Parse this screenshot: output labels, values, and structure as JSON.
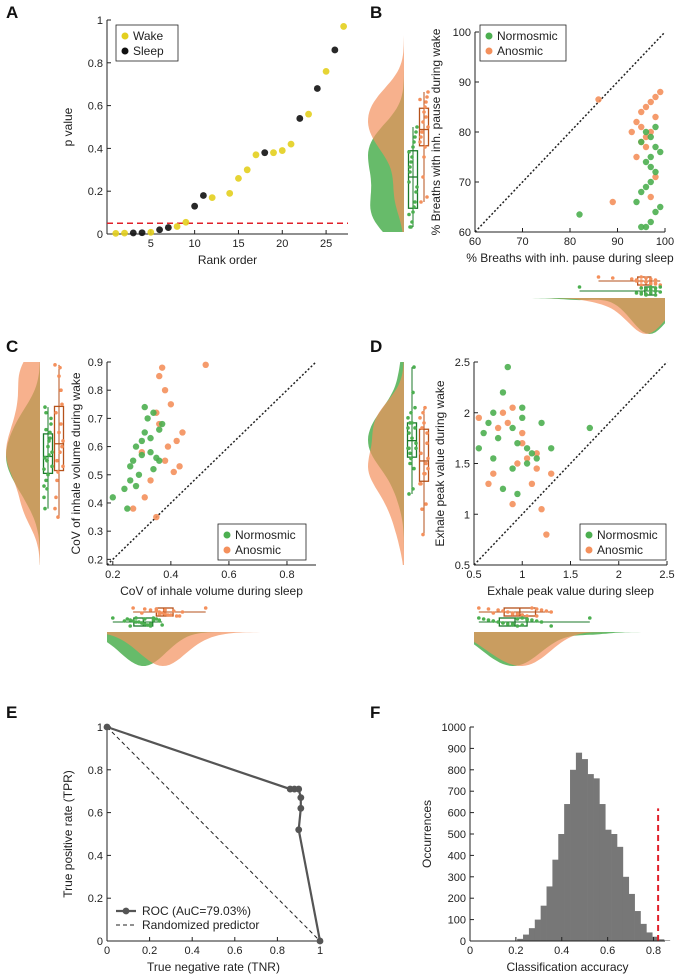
{
  "colors": {
    "wake": "#e3cf1e",
    "sleep": "#111111",
    "normosmic": "#4caf50",
    "anosmic": "#f4905c",
    "normosmic_box": "#1b7a2a",
    "anosmic_box": "#b5521b",
    "overlap": "#c39a55",
    "threshold": "#e0202a",
    "roc": "#555555",
    "hist": "#777777"
  },
  "chart_data": [
    {
      "panel": "A",
      "type": "scatter",
      "xlabel": "Rank order",
      "ylabel": "p value",
      "xlim": [
        0,
        27.5
      ],
      "ylim": [
        0,
        1
      ],
      "xticks": [
        "5",
        "10",
        "15",
        "20",
        "25"
      ],
      "yticks": [
        "0",
        "0.2",
        "0.4",
        "0.6",
        "0.8",
        "1"
      ],
      "threshold": 0.05,
      "legend": [
        "Wake",
        "Sleep"
      ],
      "wake": {
        "x": [
          1,
          2,
          5,
          8,
          9,
          12,
          14,
          15,
          16,
          17,
          19,
          20,
          21,
          23,
          25,
          27
        ],
        "y": [
          0.003,
          0.004,
          0.008,
          0.035,
          0.055,
          0.17,
          0.19,
          0.26,
          0.3,
          0.37,
          0.38,
          0.39,
          0.42,
          0.56,
          0.76,
          0.97
        ]
      },
      "sleep": {
        "x": [
          3,
          4,
          6,
          7,
          10,
          11,
          18,
          22,
          24,
          26
        ],
        "y": [
          0.005,
          0.006,
          0.02,
          0.03,
          0.13,
          0.18,
          0.38,
          0.54,
          0.68,
          0.86
        ]
      }
    },
    {
      "panel": "B",
      "type": "scatter",
      "xlabel": "% Breaths with inh. pause during sleep",
      "ylabel": "% Breaths with inh. pause during wake",
      "xlim": [
        60,
        100
      ],
      "ylim": [
        60,
        100
      ],
      "xticks": [
        "60",
        "70",
        "80",
        "90",
        "100"
      ],
      "yticks": [
        "60",
        "70",
        "80",
        "90",
        "100"
      ],
      "legend": [
        "Normosmic",
        "Anosmic"
      ],
      "normosmic": {
        "x": [
          82,
          95,
          96,
          97,
          98,
          99,
          94,
          95,
          96,
          97,
          98,
          96,
          97,
          98,
          95,
          97,
          96,
          98,
          99,
          97
        ],
        "y": [
          63.5,
          61,
          61,
          62,
          64,
          65,
          66,
          68,
          69,
          70,
          72,
          74,
          75,
          77,
          78,
          79,
          80,
          81,
          76,
          73
        ]
      },
      "anosmic": {
        "x": [
          86,
          89,
          93,
          94,
          95,
          96,
          97,
          98,
          99,
          95,
          96,
          97,
          98,
          94,
          96,
          98,
          97,
          95
        ],
        "y": [
          86.5,
          66,
          80,
          82,
          84,
          85,
          86,
          87,
          88,
          78,
          79,
          80,
          71,
          75,
          77,
          83,
          67,
          81
        ]
      }
    },
    {
      "panel": "C",
      "type": "scatter",
      "xlabel": "CoV of inhale volume during sleep",
      "ylabel": "CoV of inhale volume during wake",
      "xlim": [
        0.18,
        0.9
      ],
      "ylim": [
        0.18,
        0.9
      ],
      "xticks": [
        "0.2",
        "0.4",
        "0.6",
        "0.8"
      ],
      "yticks": [
        "0.2",
        "0.3",
        "0.4",
        "0.5",
        "0.6",
        "0.7",
        "0.8",
        "0.9"
      ],
      "legend": [
        "Normosmic",
        "Anosmic"
      ],
      "normosmic": {
        "x": [
          0.2,
          0.25,
          0.26,
          0.27,
          0.28,
          0.3,
          0.31,
          0.32,
          0.33,
          0.34,
          0.35,
          0.36,
          0.24,
          0.29,
          0.3,
          0.33,
          0.37,
          0.26,
          0.28,
          0.31,
          0.34,
          0.36
        ],
        "y": [
          0.42,
          0.38,
          0.48,
          0.55,
          0.6,
          0.62,
          0.65,
          0.7,
          0.58,
          0.52,
          0.56,
          0.66,
          0.45,
          0.5,
          0.57,
          0.63,
          0.68,
          0.53,
          0.46,
          0.74,
          0.72,
          0.55
        ]
      },
      "anosmic": {
        "x": [
          0.27,
          0.31,
          0.33,
          0.35,
          0.36,
          0.37,
          0.38,
          0.4,
          0.42,
          0.52,
          0.35,
          0.38,
          0.41,
          0.44,
          0.3,
          0.36,
          0.39,
          0.43
        ],
        "y": [
          0.38,
          0.42,
          0.48,
          0.35,
          0.85,
          0.88,
          0.8,
          0.75,
          0.62,
          0.89,
          0.72,
          0.55,
          0.51,
          0.65,
          0.58,
          0.68,
          0.6,
          0.53
        ]
      }
    },
    {
      "panel": "D",
      "type": "scatter",
      "xlabel": "Exhale peak value during sleep",
      "ylabel": "Exhale peak value during wake",
      "xlim": [
        0.5,
        2.5
      ],
      "ylim": [
        0.5,
        2.5
      ],
      "xticks": [
        "0.5",
        "1",
        "1.5",
        "2",
        "2.5"
      ],
      "yticks": [
        "0.5",
        "1",
        "1.5",
        "2",
        "2.5"
      ],
      "legend": [
        "Normosmic",
        "Anosmic"
      ],
      "normosmic": {
        "x": [
          0.55,
          0.6,
          0.65,
          0.7,
          0.75,
          0.8,
          0.85,
          0.9,
          0.95,
          1.0,
          1.05,
          1.1,
          1.15,
          1.2,
          0.8,
          0.9,
          1.0,
          1.3,
          1.7,
          0.95,
          1.05,
          0.7
        ],
        "y": [
          1.65,
          1.8,
          1.9,
          2.0,
          1.75,
          2.2,
          2.45,
          1.85,
          1.7,
          1.95,
          1.65,
          1.6,
          1.55,
          1.9,
          1.25,
          1.45,
          2.05,
          1.65,
          1.85,
          1.2,
          1.5,
          1.55
        ]
      },
      "anosmic": {
        "x": [
          0.55,
          0.65,
          0.75,
          0.8,
          0.85,
          0.9,
          0.95,
          1.0,
          1.05,
          1.1,
          1.15,
          1.2,
          1.25,
          1.3,
          0.7,
          0.9,
          1.0,
          1.15
        ],
        "y": [
          1.95,
          1.3,
          1.85,
          2.0,
          1.9,
          2.05,
          1.5,
          1.7,
          1.55,
          1.3,
          1.6,
          1.05,
          0.8,
          1.4,
          1.4,
          1.1,
          1.8,
          1.45
        ]
      }
    },
    {
      "panel": "E",
      "type": "line",
      "xlabel": "True negative rate (TNR)",
      "ylabel": "True positive rate (TPR)",
      "xlim": [
        0,
        1
      ],
      "ylim": [
        0,
        1
      ],
      "xticks": [
        "0",
        "0.2",
        "0.4",
        "0.6",
        "0.8",
        "1"
      ],
      "yticks": [
        "0",
        "0.2",
        "0.4",
        "0.6",
        "0.8",
        "1"
      ],
      "series": [
        {
          "name": "ROC (AuC=79.03%)",
          "x": [
            0,
            0.86,
            0.88,
            0.9,
            0.91,
            0.91,
            0.9,
            1
          ],
          "y": [
            1,
            0.71,
            0.71,
            0.71,
            0.67,
            0.62,
            0.52,
            0
          ]
        },
        {
          "name": "Randomized predictor",
          "x": [
            0,
            1
          ],
          "y": [
            1,
            0
          ]
        }
      ]
    },
    {
      "panel": "F",
      "type": "bar",
      "xlabel": "Classification accuracy",
      "ylabel": "Occurrences",
      "xlim": [
        0,
        0.85
      ],
      "ylim": [
        0,
        1000
      ],
      "xticks": [
        "0",
        "0.2",
        "0.4",
        "0.6",
        "0.8"
      ],
      "yticks": [
        "0",
        "100",
        "200",
        "300",
        "400",
        "500",
        "600",
        "700",
        "800",
        "900",
        "1000"
      ],
      "bin_width": 0.0256,
      "bin_start": 0.18,
      "values": [
        2,
        10,
        30,
        60,
        100,
        165,
        255,
        380,
        500,
        640,
        800,
        880,
        850,
        780,
        760,
        640,
        520,
        500,
        440,
        300,
        220,
        140,
        80,
        40,
        20,
        8,
        3
      ],
      "reference_line": 0.82
    }
  ]
}
